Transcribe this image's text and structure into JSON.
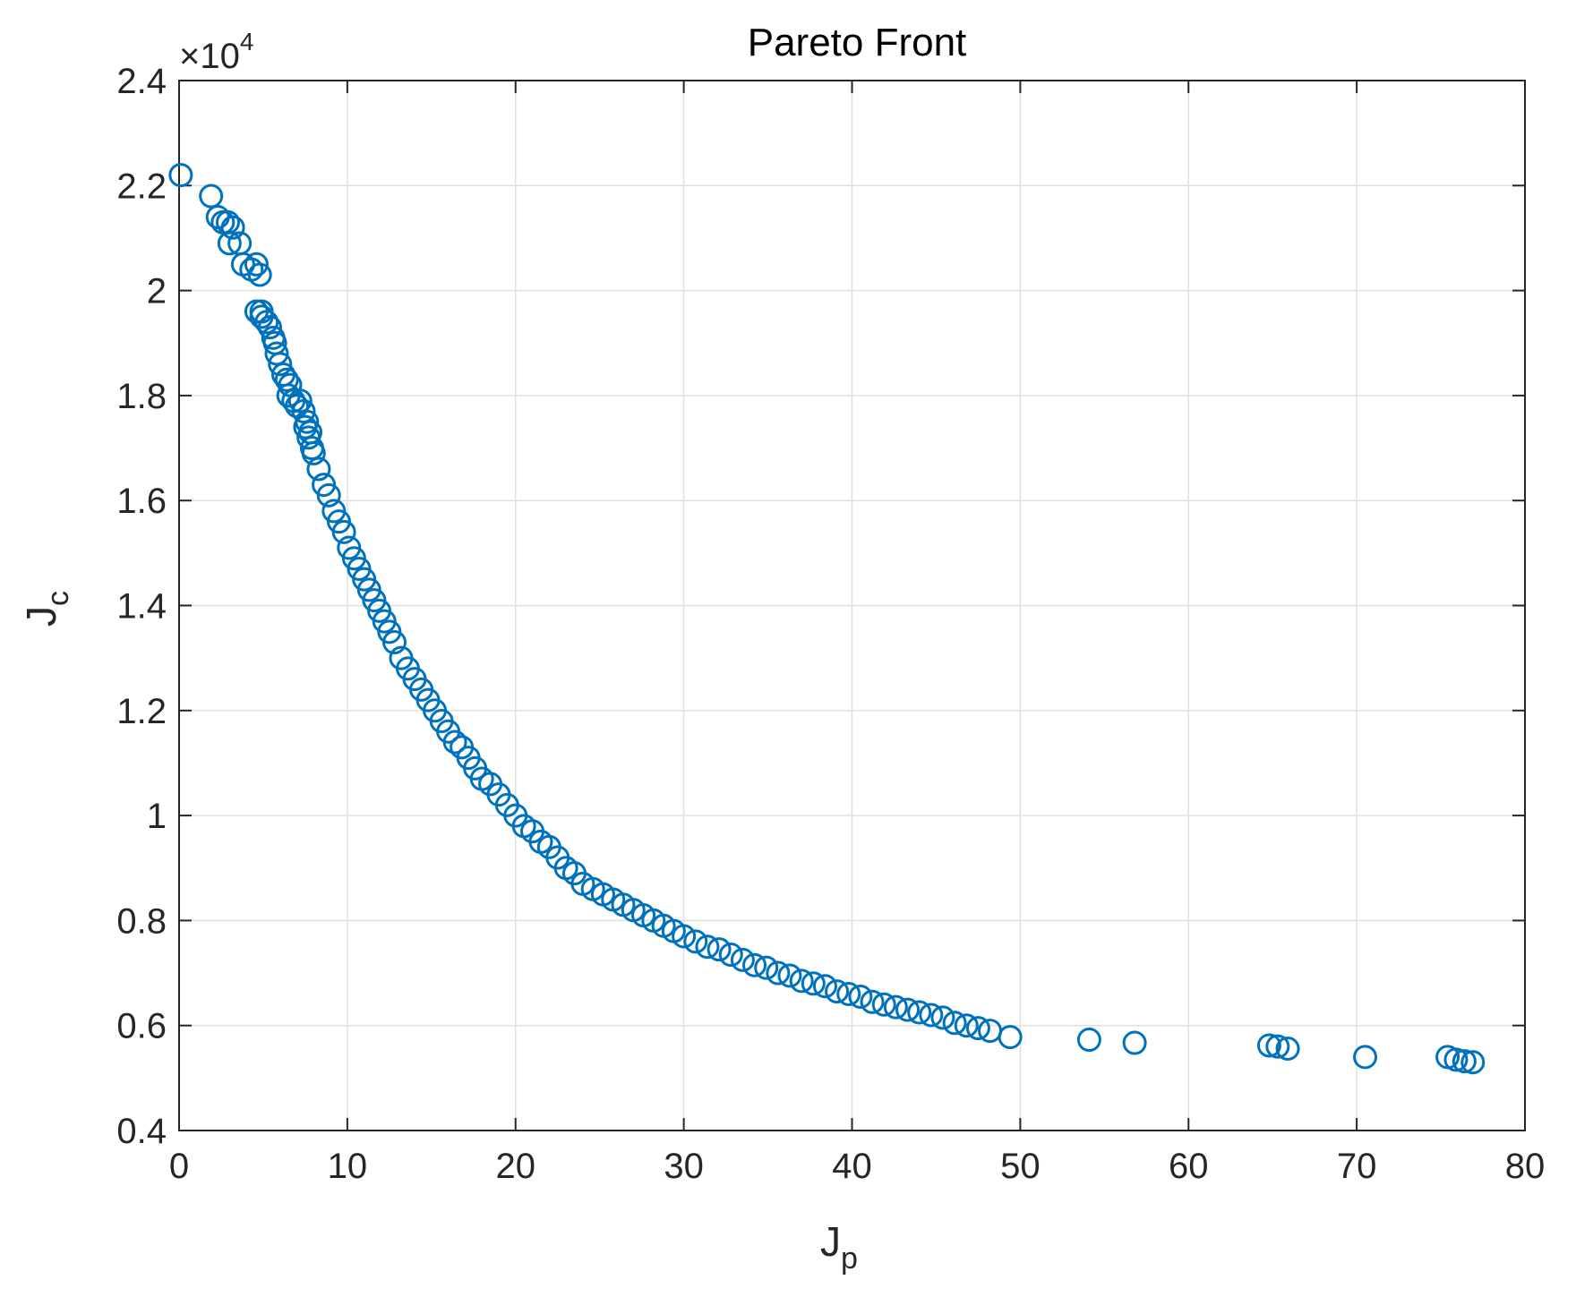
{
  "chart_data": {
    "type": "scatter",
    "title": "Pareto Front",
    "xlabel": {
      "main": "J",
      "sub": "p"
    },
    "ylabel": {
      "main": "J",
      "sub": "c"
    },
    "xlim": [
      0,
      80
    ],
    "ylim": [
      0.4,
      2.4
    ],
    "y_multiplier": {
      "base": "×10",
      "power": "4"
    },
    "x_ticks": [
      "0",
      "10",
      "20",
      "30",
      "40",
      "50",
      "60",
      "70",
      "80"
    ],
    "y_ticks": [
      "0.4",
      "0.6",
      "0.8",
      "1",
      "1.2",
      "1.4",
      "1.6",
      "1.8",
      "2",
      "2.2",
      "2.4"
    ],
    "grid": true,
    "marker": "circle-open",
    "color": "#0072BD",
    "series": [
      {
        "x": [
          0.1,
          1.9,
          2.3,
          2.6,
          2.9,
          3.2,
          3.0,
          3.6,
          3.8,
          4.3,
          4.6,
          4.8,
          4.9,
          4.6,
          4.9,
          5.2,
          5.4,
          5.6,
          5.8,
          5.7,
          6.0,
          6.2,
          6.4,
          6.6,
          6.5,
          6.8,
          7.0,
          7.2,
          7.4,
          7.6,
          7.8,
          7.5,
          7.7,
          7.9,
          8.0,
          8.3,
          8.6,
          8.9,
          9.2,
          9.5,
          9.8,
          10.1,
          10.4,
          10.7,
          11.0,
          11.3,
          11.6,
          11.9,
          12.2,
          12.5,
          12.8,
          13.2,
          13.6,
          14.0,
          14.4,
          14.8,
          15.2,
          15.6,
          16.0,
          16.4,
          16.8,
          17.2,
          17.6,
          18.0,
          18.5,
          19.0,
          19.5,
          20.0,
          20.5,
          21.0,
          21.5,
          22.0,
          22.5,
          23.0,
          23.5,
          24.0,
          24.6,
          25.2,
          25.8,
          26.4,
          27.0,
          27.6,
          28.2,
          28.8,
          29.4,
          30.0,
          30.7,
          31.4,
          32.1,
          32.8,
          33.5,
          34.2,
          34.9,
          35.6,
          36.3,
          37.0,
          37.7,
          38.4,
          39.1,
          39.8,
          40.5,
          41.2,
          41.9,
          42.6,
          43.3,
          44.0,
          44.7,
          45.4,
          46.1,
          46.8,
          47.5,
          48.2,
          49.4,
          54.1,
          56.8,
          64.8,
          65.3,
          65.9,
          70.5,
          75.4,
          75.9,
          76.4,
          76.9
        ],
        "y": [
          2.22,
          2.18,
          2.14,
          2.13,
          2.13,
          2.12,
          2.09,
          2.09,
          2.05,
          2.04,
          2.05,
          2.03,
          1.96,
          1.96,
          1.95,
          1.94,
          1.93,
          1.91,
          1.88,
          1.9,
          1.86,
          1.84,
          1.83,
          1.82,
          1.8,
          1.79,
          1.78,
          1.79,
          1.77,
          1.75,
          1.73,
          1.74,
          1.72,
          1.7,
          1.69,
          1.66,
          1.63,
          1.61,
          1.58,
          1.56,
          1.54,
          1.51,
          1.49,
          1.47,
          1.45,
          1.43,
          1.41,
          1.39,
          1.37,
          1.35,
          1.33,
          1.3,
          1.28,
          1.26,
          1.24,
          1.22,
          1.2,
          1.18,
          1.16,
          1.14,
          1.13,
          1.11,
          1.09,
          1.07,
          1.06,
          1.04,
          1.02,
          1.0,
          0.98,
          0.97,
          0.95,
          0.94,
          0.92,
          0.9,
          0.89,
          0.87,
          0.86,
          0.85,
          0.84,
          0.83,
          0.82,
          0.81,
          0.8,
          0.79,
          0.78,
          0.77,
          0.76,
          0.75,
          0.745,
          0.735,
          0.725,
          0.715,
          0.71,
          0.7,
          0.695,
          0.685,
          0.68,
          0.675,
          0.665,
          0.66,
          0.655,
          0.645,
          0.64,
          0.635,
          0.63,
          0.625,
          0.62,
          0.615,
          0.605,
          0.6,
          0.595,
          0.59,
          0.578,
          0.573,
          0.567,
          0.562,
          0.56,
          0.556,
          0.54,
          0.54,
          0.535,
          0.532,
          0.53
        ]
      }
    ]
  }
}
